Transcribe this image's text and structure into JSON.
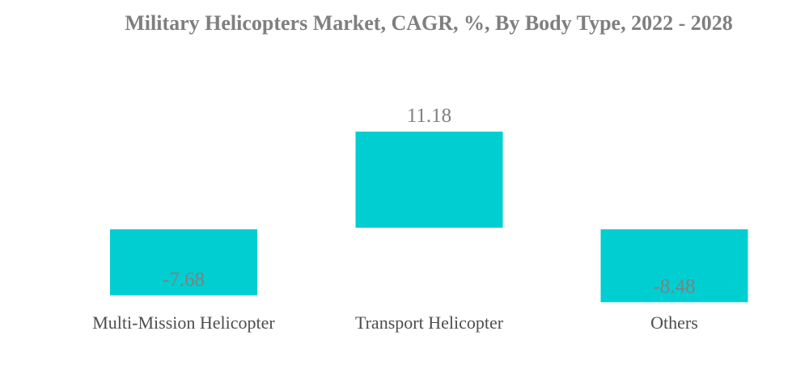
{
  "chart_data": {
    "type": "bar",
    "title": "Military Helicopters Market, CAGR, %, By Body Type, 2022 - 2028",
    "categories": [
      "Multi-Mission Helicopter",
      "Transport Helicopter",
      "Others"
    ],
    "values": [
      -7.68,
      11.18,
      -8.48
    ],
    "value_labels": [
      "-7.68",
      "11.18",
      "-8.48"
    ],
    "xlabel": "",
    "ylabel": "",
    "ylim": [
      -9,
      12
    ],
    "grid": false,
    "legend": "none",
    "bar_color": "#00CED1",
    "label_color": "#808080"
  }
}
